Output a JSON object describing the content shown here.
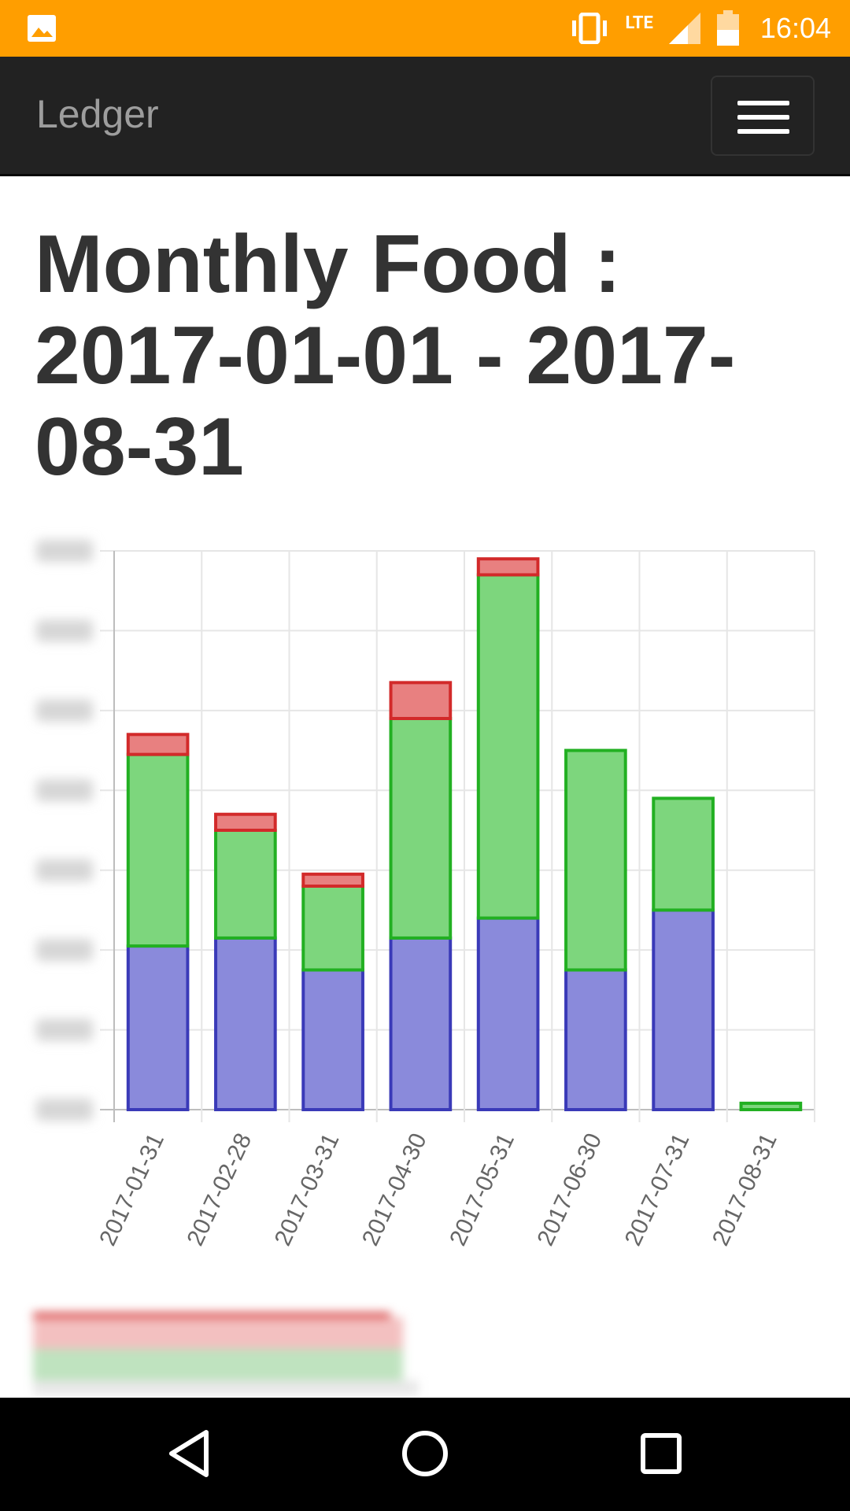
{
  "status_bar": {
    "time": "16:04",
    "network": "LTE",
    "icons": [
      "gallery-icon",
      "vibrate-icon",
      "signal-icon",
      "battery-icon"
    ]
  },
  "navbar": {
    "brand": "Ledger",
    "menu_icon": "hamburger-menu-icon"
  },
  "page": {
    "title": "Monthly Food : 2017-01-01 - 2017-08-31"
  },
  "chart_data": {
    "type": "bar",
    "stacked": true,
    "categories": [
      "2017-01-31",
      "2017-02-28",
      "2017-03-31",
      "2017-04-30",
      "2017-05-31",
      "2017-06-30",
      "2017-07-31",
      "2017-08-31"
    ],
    "series": [
      {
        "color": "#3a3ab8",
        "fill": "#8a8adb",
        "values": [
          205,
          215,
          175,
          215,
          240,
          175,
          250,
          0
        ]
      },
      {
        "color": "#22b022",
        "fill": "#7dd67d",
        "values": [
          240,
          135,
          105,
          275,
          430,
          275,
          140,
          8
        ]
      },
      {
        "color": "#d22a2a",
        "fill": "#e88080",
        "values": [
          25,
          20,
          15,
          45,
          20,
          0,
          0,
          0
        ]
      }
    ],
    "ylim": [
      0,
      700
    ],
    "y_ticks": [
      0,
      100,
      200,
      300,
      400,
      500,
      600,
      700
    ],
    "y_tick_labels_blurred": true,
    "grid": true
  },
  "bottom_nav": {
    "icons": [
      "back-icon",
      "home-icon",
      "recents-icon"
    ]
  }
}
